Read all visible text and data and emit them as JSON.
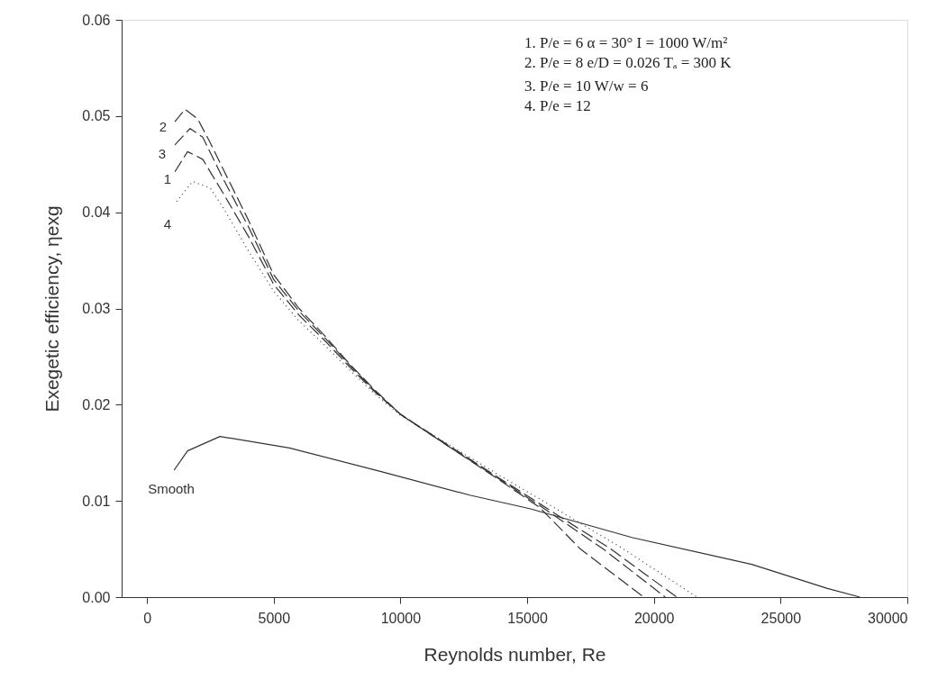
{
  "chart_data": {
    "type": "line",
    "xlabel": "Reynolds number, Re",
    "ylabel": "Exegetic efficiency, ηexg",
    "xlim": [
      -1000,
      30000
    ],
    "ylim": [
      0,
      0.06
    ],
    "xticks": [
      0,
      5000,
      10000,
      15000,
      20000,
      25000,
      30000
    ],
    "yticks": [
      {
        "value": 0,
        "label": "0.00"
      },
      {
        "value": 0.01,
        "label": "0.01"
      },
      {
        "value": 0.02,
        "label": "0.02"
      },
      {
        "value": 0.03,
        "label": "0.03"
      },
      {
        "value": 0.04,
        "label": "0.04"
      },
      {
        "value": 0.05,
        "label": "0.05"
      },
      {
        "value": 0.06,
        "label": "0.06"
      }
    ],
    "grid": false,
    "marker": "none",
    "series": [
      {
        "color": "#333333",
        "line_style": "dashed",
        "x": [
          1100,
          1600,
          2200,
          3000,
          4000,
          5000,
          6000,
          7000,
          8000,
          9000,
          10000,
          12000,
          14000,
          15500,
          18300,
          20900
        ],
        "values": [
          0.0442,
          0.0463,
          0.0455,
          0.042,
          0.0375,
          0.0325,
          0.0293,
          0.0267,
          0.0239,
          0.0213,
          0.019,
          0.0156,
          0.0122,
          0.0097,
          0.005,
          0
        ]
      },
      {
        "color": "#333333",
        "line_style": "dashed",
        "x": [
          1100,
          1500,
          2000,
          2500,
          3000,
          4000,
          5000,
          6000,
          7000,
          8000,
          9000,
          10000,
          12000,
          14000,
          15500,
          17100,
          19600
        ],
        "values": [
          0.0494,
          0.0507,
          0.0497,
          0.0472,
          0.0445,
          0.0392,
          0.0335,
          0.03,
          0.0272,
          0.0242,
          0.0215,
          0.019,
          0.0155,
          0.012,
          0.0093,
          0.005,
          0
        ]
      },
      {
        "color": "#333333",
        "line_style": "dashed",
        "x": [
          1100,
          1700,
          2200,
          3000,
          4000,
          5000,
          6000,
          7000,
          8000,
          9000,
          10000,
          12000,
          14000,
          15500,
          18000,
          20450
        ],
        "values": [
          0.047,
          0.0487,
          0.0478,
          0.0435,
          0.0385,
          0.033,
          0.0297,
          0.027,
          0.0241,
          0.0214,
          0.019,
          0.0155,
          0.0121,
          0.0095,
          0.005,
          0
        ]
      },
      {
        "color": "#333333",
        "line_style": "dotted",
        "x": [
          1170,
          1800,
          2500,
          3000,
          4000,
          5000,
          6000,
          7000,
          8000,
          9000,
          10000,
          12000,
          14000,
          15500,
          18800,
          21700
        ],
        "values": [
          0.0411,
          0.0432,
          0.0425,
          0.0405,
          0.036,
          0.0318,
          0.0287,
          0.0262,
          0.0236,
          0.0211,
          0.0189,
          0.0157,
          0.0125,
          0.0102,
          0.005,
          0
        ]
      },
      {
        "color": "#333333",
        "line_style": "solid",
        "x": [
          1070,
          1600,
          2880,
          5620,
          9170,
          12730,
          15100,
          19130,
          23860,
          26850,
          28130
        ],
        "values": [
          0.0132,
          0.0152,
          0.0167,
          0.0155,
          0.0131,
          0.0106,
          0.0092,
          0.0062,
          0.0034,
          0.0009,
          0
        ]
      }
    ],
    "annotations": [
      "2",
      "3",
      "1",
      "4",
      "Smooth",
      "1.  P/e = 6     α     = 30°     I  = 1000 W/m²",
      "2.  P/e = 8    e/D   = 0.026  Tₐ = 300 K",
      "3.  P/e = 10    W/w = 6",
      "4.  P/e = 12"
    ]
  }
}
